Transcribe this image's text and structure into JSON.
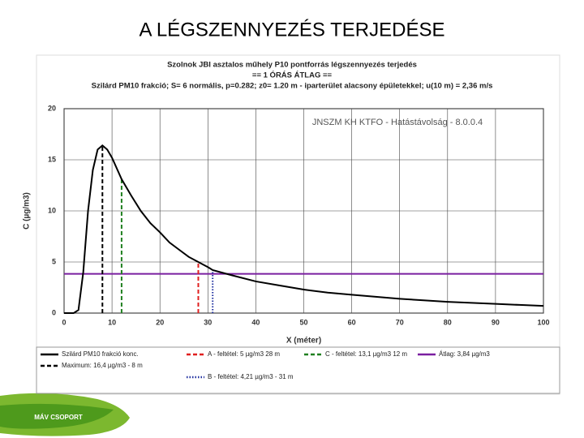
{
  "slide_title": "A LÉGSZENNYEZÉS TERJEDÉSE",
  "logo": "MÁV CSOPORT",
  "chart_data": {
    "type": "line",
    "title": [
      "Szolnok JBI asztalos műhely P10 pontforrás légszennyezés terjedés",
      "== 1 ÓRÁS ÁTLAG ==",
      "Szilárd PM10 frakció; S= 6 normális, p=0.282; z0= 1.20 m - iparterület alacsony épületekkel; u(10 m) = 2,36 m/s"
    ],
    "annotation": "JNSZM KH KTFO - Hatástávolság - 8.0.0.4",
    "xlabel": "X (méter)",
    "ylabel": "C (µg/m3)",
    "xlim": [
      0,
      100
    ],
    "ylim": [
      0,
      20
    ],
    "xticks": [
      0,
      10,
      20,
      30,
      40,
      50,
      60,
      70,
      80,
      90,
      100
    ],
    "yticks": [
      0,
      5,
      10,
      15,
      20
    ],
    "grid": true,
    "series": [
      {
        "name": "Szilárd PM10 frakció konc.",
        "color": "#000000",
        "x": [
          0,
          2,
          3,
          4,
          5,
          6,
          7,
          8,
          9,
          10,
          12,
          14,
          16,
          18,
          20,
          22,
          24,
          26,
          28,
          30,
          31,
          35,
          40,
          45,
          50,
          55,
          60,
          65,
          70,
          75,
          80,
          85,
          90,
          95,
          100
        ],
        "values": [
          0,
          0,
          0.3,
          4,
          10,
          14,
          16,
          16.4,
          16,
          15.2,
          13.1,
          11.5,
          10,
          8.8,
          7.9,
          6.9,
          6.2,
          5.5,
          5,
          4.5,
          4.21,
          3.7,
          3.1,
          2.7,
          2.3,
          2.0,
          1.8,
          1.6,
          1.4,
          1.25,
          1.1,
          1.0,
          0.9,
          0.8,
          0.7
        ]
      }
    ],
    "markers": [
      {
        "name": "Maximum: 16,4 µg/m3 - 8 m",
        "x": 8,
        "value": 16.4,
        "color": "#000000",
        "style": "dashed"
      },
      {
        "name": "A - feltétel: 5 µg/m3 28 m",
        "x": 28,
        "value": 5,
        "color": "#e02020",
        "style": "dashed"
      },
      {
        "name": "B - feltétel: 4,21 µg/m3 - 31 m",
        "x": 31,
        "value": 4.21,
        "color": "#2030a0",
        "style": "dotted"
      },
      {
        "name": "C - feltétel: 13,1 µg/m3 12 m",
        "x": 12,
        "value": 13.1,
        "color": "#208020",
        "style": "dashed"
      }
    ],
    "average": {
      "name": "Átlag: 3,84 µg/m3",
      "value": 3.84,
      "color": "#7a1fa0"
    }
  }
}
